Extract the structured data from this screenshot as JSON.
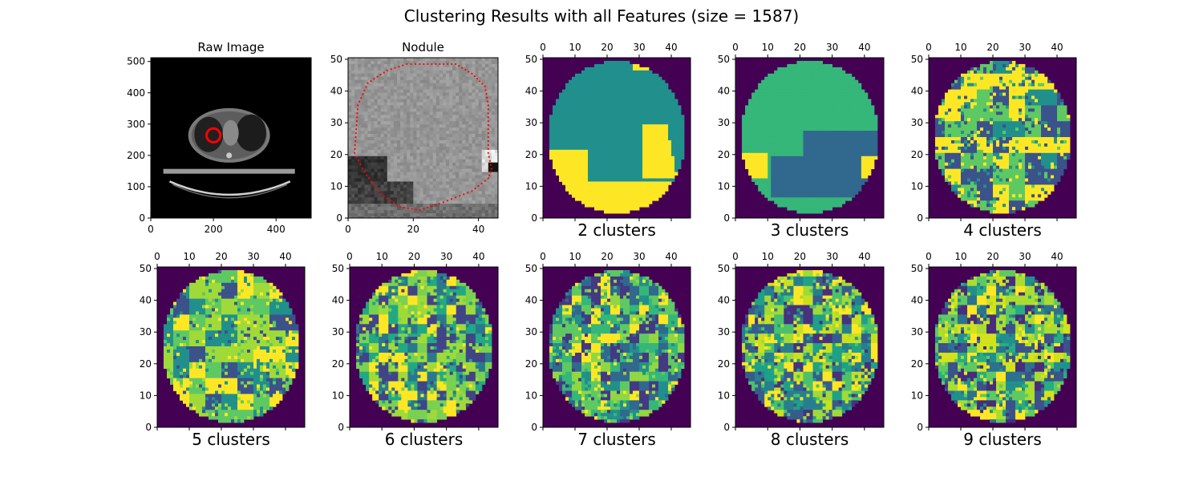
{
  "figure": {
    "title": "Clustering Results with all Features (size = 1587)"
  },
  "chart_data": [
    {
      "type": "heatmap",
      "panel": "raw-image",
      "title": "Raw Image",
      "xticks": [
        0,
        200,
        400
      ],
      "yticks": [
        0,
        100,
        200,
        300,
        400,
        500
      ],
      "xlim": [
        0,
        512
      ],
      "ylim": [
        512,
        0
      ],
      "tick_position": "bottom",
      "colormap": "gray",
      "annotation": {
        "shape": "circle",
        "color": "#ff0000",
        "center": [
          200,
          248
        ],
        "radius": 22
      }
    },
    {
      "type": "heatmap",
      "panel": "nodule",
      "title": "Nodule",
      "xticks": [
        0,
        20,
        40
      ],
      "yticks": [
        0,
        10,
        20,
        30,
        40,
        50
      ],
      "xlim": [
        0,
        46
      ],
      "ylim": [
        50.5,
        0
      ],
      "tick_position": "bottom",
      "colormap": "gray",
      "contour_color": "#ff0000",
      "contour": [
        [
          22,
          2
        ],
        [
          33,
          2
        ],
        [
          38,
          5
        ],
        [
          42,
          9
        ],
        [
          43,
          15
        ],
        [
          43,
          30
        ],
        [
          44,
          35
        ],
        [
          43,
          38
        ],
        [
          38,
          42
        ],
        [
          33,
          44
        ],
        [
          28,
          46
        ],
        [
          22,
          48
        ],
        [
          16,
          47
        ],
        [
          10,
          43
        ],
        [
          5,
          36
        ],
        [
          2,
          30
        ],
        [
          3,
          15
        ],
        [
          6,
          8
        ],
        [
          12,
          4
        ],
        [
          18,
          2
        ]
      ]
    },
    {
      "type": "heatmap",
      "panel": "k2",
      "label": "2 clusters",
      "clusters": 2,
      "xticks": [
        0,
        10,
        20,
        30,
        40
      ],
      "yticks": [
        0,
        10,
        20,
        30,
        40,
        50
      ],
      "xlim": [
        0,
        46
      ],
      "ylim": [
        50.5,
        0
      ],
      "tick_position": "top",
      "colors": [
        "#440154",
        "#21908d",
        "#fde725"
      ]
    },
    {
      "type": "heatmap",
      "panel": "k3",
      "label": "3 clusters",
      "clusters": 3,
      "xticks": [
        0,
        10,
        20,
        30,
        40
      ],
      "yticks": [
        0,
        10,
        20,
        30,
        40,
        50
      ],
      "xlim": [
        0,
        46
      ],
      "ylim": [
        50.5,
        0
      ],
      "tick_position": "top",
      "colors": [
        "#440154",
        "#31688e",
        "#35b779",
        "#fde725"
      ]
    },
    {
      "type": "heatmap",
      "panel": "k4",
      "label": "4 clusters",
      "clusters": 4,
      "xticks": [
        0,
        10,
        20,
        30,
        40
      ],
      "yticks": [
        0,
        10,
        20,
        30,
        40,
        50
      ],
      "xlim": [
        0,
        46
      ],
      "ylim": [
        50.5,
        0
      ],
      "tick_position": "top",
      "colors": [
        "#440154",
        "#3b528b",
        "#21908d",
        "#5ec962",
        "#fde725"
      ]
    },
    {
      "type": "heatmap",
      "panel": "k5",
      "label": "5 clusters",
      "clusters": 5,
      "xticks": [
        0,
        10,
        20,
        30,
        40
      ],
      "yticks": [
        0,
        10,
        20,
        30,
        40,
        50
      ],
      "xlim": [
        0,
        46
      ],
      "ylim": [
        50.5,
        0
      ],
      "tick_position": "top",
      "colors": [
        "#440154",
        "#3b528b",
        "#21908d",
        "#5ec962",
        "#a0da39",
        "#fde725"
      ]
    },
    {
      "type": "heatmap",
      "panel": "k6",
      "label": "6 clusters",
      "clusters": 6,
      "xticks": [
        0,
        10,
        20,
        30,
        40
      ],
      "yticks": [
        0,
        10,
        20,
        30,
        40,
        50
      ],
      "xlim": [
        0,
        46
      ],
      "ylim": [
        50.5,
        0
      ],
      "tick_position": "top",
      "colors": [
        "#440154",
        "#414487",
        "#2a788e",
        "#22a884",
        "#7ad151",
        "#a0da39",
        "#fde725"
      ]
    },
    {
      "type": "heatmap",
      "panel": "k7",
      "label": "7 clusters",
      "clusters": 7,
      "xticks": [
        0,
        10,
        20,
        30,
        40
      ],
      "yticks": [
        0,
        10,
        20,
        30,
        40,
        50
      ],
      "xlim": [
        0,
        46
      ],
      "ylim": [
        50.5,
        0
      ],
      "tick_position": "top",
      "colors": [
        "#440154",
        "#443983",
        "#31688e",
        "#21908d",
        "#35b779",
        "#5ec962",
        "#90d743",
        "#fde725"
      ]
    },
    {
      "type": "heatmap",
      "panel": "k8",
      "label": "8 clusters",
      "clusters": 8,
      "xticks": [
        0,
        10,
        20,
        30,
        40
      ],
      "yticks": [
        0,
        10,
        20,
        30,
        40,
        50
      ],
      "xlim": [
        0,
        46
      ],
      "ylim": [
        50.5,
        0
      ],
      "tick_position": "top",
      "colors": [
        "#440154",
        "#46327e",
        "#365c8d",
        "#277f8e",
        "#1fa187",
        "#4ac16d",
        "#a0da39",
        "#c8e020",
        "#fde725"
      ]
    },
    {
      "type": "heatmap",
      "panel": "k9",
      "label": "9 clusters",
      "clusters": 9,
      "xticks": [
        0,
        10,
        20,
        30,
        40
      ],
      "yticks": [
        0,
        10,
        20,
        30,
        40,
        50
      ],
      "xlim": [
        0,
        46
      ],
      "ylim": [
        50.5,
        0
      ],
      "tick_position": "top",
      "colors": [
        "#440154",
        "#472d7b",
        "#3b528b",
        "#2c728e",
        "#21908d",
        "#27ad81",
        "#5ec962",
        "#aadc32",
        "#d2e21b",
        "#fde725"
      ]
    }
  ]
}
